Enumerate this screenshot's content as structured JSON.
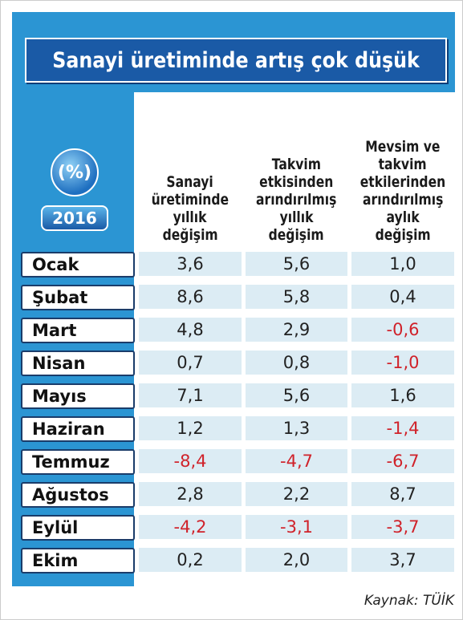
{
  "title": "Sanayi üretiminde artış çok düşük",
  "unit_badge": "(%)",
  "year_badge": "2016",
  "table": {
    "headers": [
      [
        "Sanayi",
        "üretiminde",
        "yıllık",
        "değişim"
      ],
      [
        "Takvim",
        "etkisinden",
        "arındırılmış",
        "yıllık",
        "değişim"
      ],
      [
        "Mevsim ve",
        "takvim",
        "etkilerinden",
        "arındırılmış",
        "aylık",
        "değişim"
      ]
    ],
    "rows": [
      [
        "Ocak",
        "3,6",
        "5,6",
        "1,0"
      ],
      [
        "Şubat",
        "8,6",
        "5,8",
        "0,4"
      ],
      [
        "Mart",
        "4,8",
        "2,9",
        "-0,6"
      ],
      [
        "Nisan",
        "0,7",
        "0,8",
        "-1,0"
      ],
      [
        "Mayıs",
        "7,1",
        "5,6",
        "1,6"
      ],
      [
        "Haziran",
        "1,2",
        "1,3",
        "-1,4"
      ],
      [
        "Temmuz",
        "-8,4",
        "-4,7",
        "-6,7"
      ],
      [
        "Ağustos",
        "2,8",
        "2,2",
        "8,7"
      ],
      [
        "Eylül",
        "-4,2",
        "-3,1",
        "-3,7"
      ],
      [
        "Ekim",
        "0,2",
        "2,0",
        "3,7"
      ]
    ]
  },
  "source": "Kaynak: TÜİK"
}
